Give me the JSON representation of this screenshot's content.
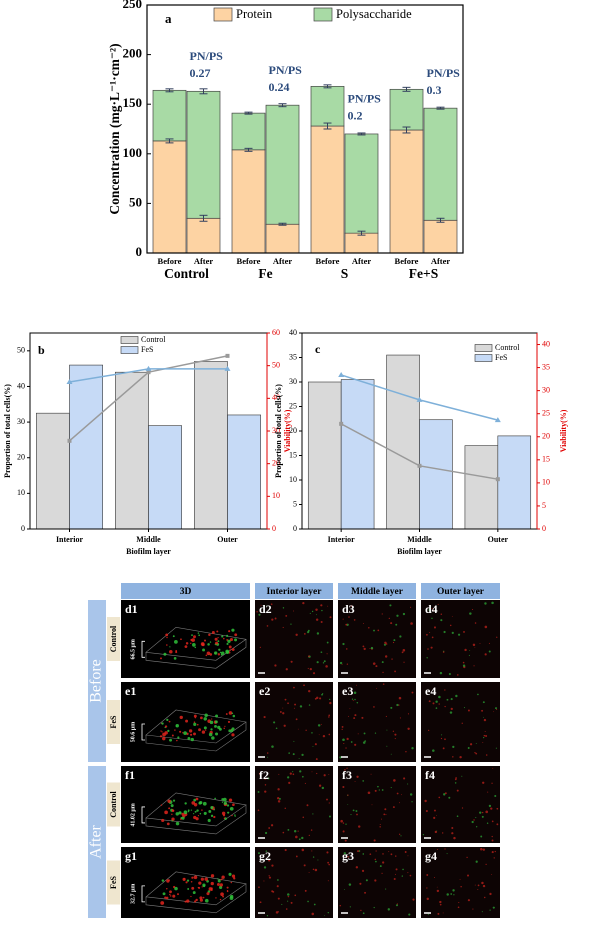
{
  "chart_data": [
    {
      "type": "stacked_bar",
      "panel": "a",
      "ylabel": "Concentration (mg·L⁻¹·cm⁻²)",
      "categories": [
        "Control",
        "Fe",
        "S",
        "Fe+S"
      ],
      "subcategories": [
        "Before",
        "After"
      ],
      "ylim": [
        0,
        250
      ],
      "yticks": [
        0,
        50,
        100,
        150,
        200,
        250
      ],
      "series": [
        {
          "name": "Protein",
          "color": "#fdd3a3",
          "values": [
            [
              113,
              35
            ],
            [
              104,
              29
            ],
            [
              128,
              20
            ],
            [
              124,
              33
            ]
          ],
          "errors": [
            [
              2,
              3
            ],
            [
              1.5,
              1
            ],
            [
              3,
              2
            ],
            [
              3,
              2
            ]
          ]
        },
        {
          "name": "Polysaccharide",
          "color": "#a8daa5",
          "values": [
            [
              51,
              128
            ],
            [
              37,
              120
            ],
            [
              40,
              100
            ],
            [
              41,
              113
            ]
          ],
          "errors": [
            [
              1.5,
              2.5
            ],
            [
              1,
              1.5
            ],
            [
              1.5,
              1
            ],
            [
              2,
              1
            ]
          ]
        }
      ],
      "annotations": [
        {
          "label": "PN/PS",
          "value": 0.27
        },
        {
          "label": "PN/PS",
          "value": 0.24
        },
        {
          "label": "PN/PS",
          "value": 0.2
        },
        {
          "label": "PN/PS",
          "value": 0.3
        }
      ]
    },
    {
      "type": "bar_line",
      "panel": "b",
      "xlabel": "Biofilm layer",
      "ylabel": "Proportion of total cells(%)",
      "y2label": "Viability(%)",
      "y2color": "#e00000",
      "categories": [
        "Interior",
        "Middle",
        "Outer"
      ],
      "ylim": [
        0,
        55
      ],
      "yticks": [
        0,
        10,
        20,
        30,
        40,
        50
      ],
      "y2lim": [
        0,
        60
      ],
      "y2ticks": [
        0,
        10,
        20,
        30,
        40,
        50,
        60
      ],
      "series": [
        {
          "name": "Control",
          "color": "#d9d9d9",
          "values": [
            32.5,
            44,
            47
          ]
        },
        {
          "name": "FeS",
          "color": "#c6daf6",
          "values": [
            46,
            29,
            32
          ]
        },
        {
          "axis": "y2",
          "color": "#9a9a9a",
          "values": [
            27,
            48,
            53
          ]
        },
        {
          "axis": "y2",
          "color": "#7eb0d9",
          "values": [
            45,
            49,
            49
          ]
        }
      ]
    },
    {
      "type": "bar_line",
      "panel": "c",
      "xlabel": "Biofilm layer",
      "ylabel": "Proportion of total cells(%)",
      "y2label": "Viability(%)",
      "y2color": "#e00000",
      "categories": [
        "Interior",
        "Middle",
        "Outer"
      ],
      "ylim": [
        0,
        40
      ],
      "yticks": [
        0,
        5,
        10,
        15,
        20,
        25,
        30,
        35,
        40
      ],
      "y2lim": [
        0,
        42.5
      ],
      "y2ticks": [
        0,
        5,
        10,
        15,
        20,
        25,
        30,
        35,
        40
      ],
      "series": [
        {
          "name": "Control",
          "color": "#d9d9d9",
          "values": [
            30,
            35.5,
            17
          ]
        },
        {
          "name": "FeS",
          "color": "#c6daf6",
          "values": [
            30.5,
            22.3,
            19
          ]
        },
        {
          "axis": "y2",
          "color": "#9a9a9a",
          "values": [
            22.8,
            13.7,
            10.8
          ]
        },
        {
          "axis": "y2",
          "color": "#7eb0d9",
          "values": [
            33.4,
            28,
            23.6
          ]
        }
      ]
    }
  ],
  "micrograph_panel": {
    "columns": [
      "3D",
      "Interior layer",
      "Middle layer",
      "Outer layer"
    ],
    "groups": [
      {
        "label": "Before",
        "rows": [
          {
            "label": "Control",
            "thickness": "66.5 μm",
            "panels": [
              "d1",
              "d2",
              "d3",
              "d4"
            ]
          },
          {
            "label": "FeS",
            "thickness": "50.6 μm",
            "panels": [
              "e1",
              "e2",
              "e3",
              "e4"
            ]
          }
        ]
      },
      {
        "label": "After",
        "rows": [
          {
            "label": "Control",
            "thickness": "41.02 μm",
            "panels": [
              "f1",
              "f2",
              "f3",
              "f4"
            ]
          },
          {
            "label": "FeS",
            "thickness": "32.7 μm",
            "panels": [
              "g1",
              "g2",
              "g3",
              "g4"
            ]
          }
        ]
      }
    ]
  }
}
